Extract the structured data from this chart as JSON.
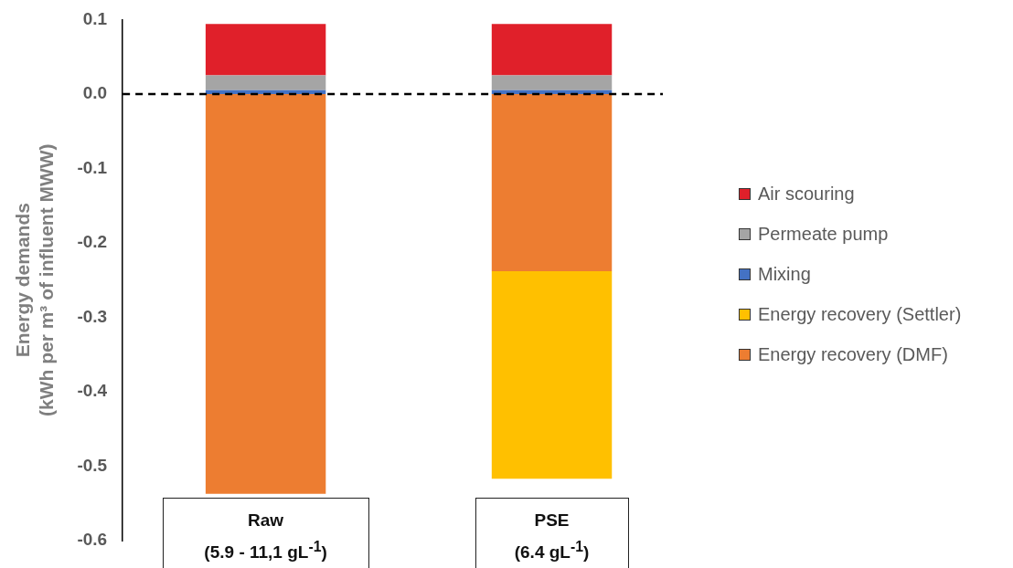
{
  "chart_data": {
    "type": "bar",
    "stacked": true,
    "ylabel": "Energy demands\n(kWh per m³ of influent MWW)",
    "categories": [
      "Raw\n(5.9 - 11,1 gL$^{-1}$)",
      "PSE\n(6.4 gL$^{-1}$)"
    ],
    "series": [
      {
        "name": "Mixing",
        "color": "#4472c4",
        "values": [
          0.005,
          0.005
        ]
      },
      {
        "name": "Permeate pump",
        "color": "#a5a5a5",
        "values": [
          0.02,
          0.02
        ]
      },
      {
        "name": "Air scouring",
        "color": "#e0202a",
        "values": [
          0.069,
          0.069
        ]
      },
      {
        "name": "Energy recovery (DMF)",
        "color": "#ed7d31",
        "values": [
          -0.537,
          -0.238
        ]
      },
      {
        "name": "Energy recovery (Settler)",
        "color": "#ffc000",
        "values": [
          null,
          -0.279
        ]
      }
    ],
    "ylim": [
      -0.6,
      0.1
    ],
    "yticks": [
      0.1,
      {
        "value": 0,
        "label": "0.0"
      },
      -0.1,
      -0.2,
      -0.3,
      -0.4,
      -0.5,
      -0.6
    ],
    "ref_lines": [
      {
        "axis": "y",
        "value": 0,
        "line_style": "dashed",
        "color": "#000000"
      }
    ],
    "grid": false,
    "legend": "right"
  }
}
